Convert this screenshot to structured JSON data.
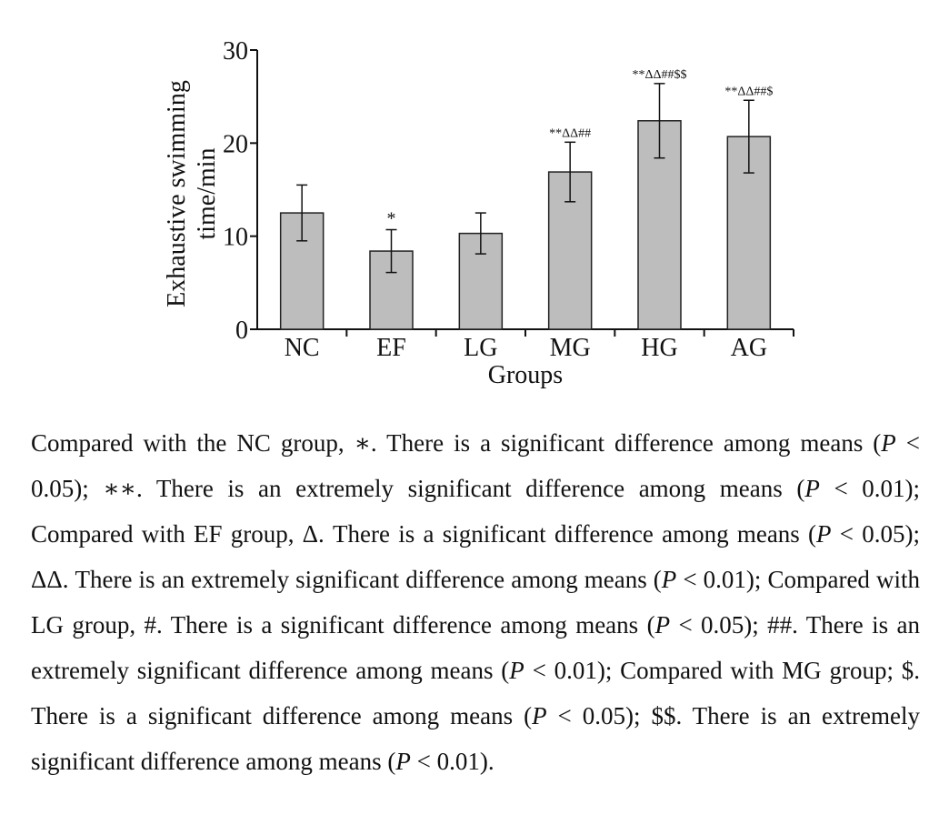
{
  "chart_data": {
    "type": "bar",
    "categories": [
      "NC",
      "EF",
      "LG",
      "MG",
      "HG",
      "AG"
    ],
    "values": [
      12.5,
      8.4,
      10.3,
      16.9,
      22.4,
      20.7
    ],
    "error": [
      3.0,
      2.3,
      2.2,
      3.2,
      4.0,
      3.9
    ],
    "significance": [
      "",
      "*",
      "",
      "**ΔΔ##",
      "**ΔΔ##$$",
      "**ΔΔ##$"
    ],
    "title": "",
    "xlabel": "Groups",
    "ylabel": [
      "Exhaustive swimming",
      "time/min"
    ],
    "ylim": [
      0,
      30
    ],
    "yticks": [
      0,
      10,
      20,
      30
    ],
    "bar_color": "#bdbdbd",
    "edge_color": "#222222"
  },
  "caption": {
    "lines": [
      "Compared with the NC group, ∗. There is a significant difference among",
      "means (P < 0.05); ∗∗. There is an extremely significant difference among",
      "means (P < 0.01); Compared with EF group, Δ. There is a significant",
      "difference among means (P < 0.05); ΔΔ. There is an extremely significant",
      "difference among means (P < 0.01); Compared with LG group, #. There",
      "is a significant difference among means (P < 0.05); ##. There is an",
      "extremely significant difference among means (P < 0.01); Compared with",
      "MG group; $. There is a significant difference among means (P < 0.05);",
      "$$. There is an extremely significant difference among means (P < 0.01)."
    ]
  }
}
